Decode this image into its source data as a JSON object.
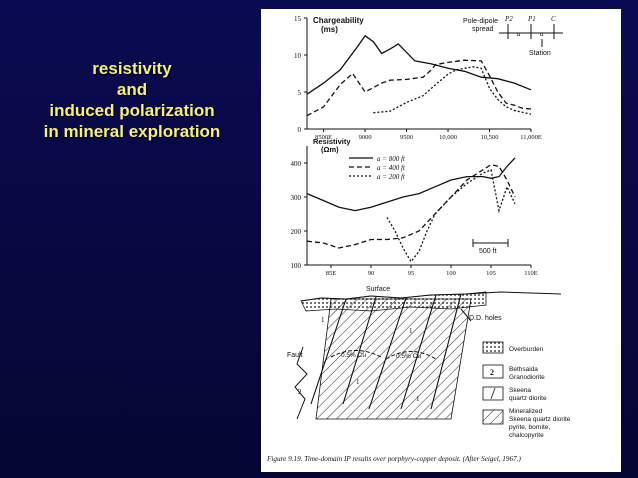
{
  "title_lines": [
    "resistivity",
    "and",
    "induced polarization",
    "in mineral exploration"
  ],
  "caption": "Figure 9.19. Time-domain IP results over porphyry-copper deposit. (After Seigel, 1967.)",
  "top_plot": {
    "ylabel_1": "Chargeability",
    "ylabel_2": "(ms)",
    "yticks": [
      "15",
      "10",
      "5",
      "0"
    ],
    "xticks": [
      "8500E",
      "9000",
      "9500",
      "10,000",
      "10,500",
      "11,000E"
    ]
  },
  "spread": {
    "label_1": "Pole-dipole",
    "label_2": "spread",
    "electrodes": [
      "P2",
      "P1",
      "C"
    ],
    "a_label": "a",
    "station_label": "Station"
  },
  "mid_plot": {
    "ylabel_1": "Resistivity",
    "ylabel_2": "(Ωm)",
    "yticks": [
      "400",
      "300",
      "200",
      "100"
    ],
    "xticks": [
      "85E",
      "90",
      "95",
      "100",
      "105",
      "110E"
    ],
    "legend": [
      "a = 800 ft",
      "a = 400 ft",
      "a = 200 ft"
    ],
    "scale_label": "500 ft"
  },
  "section": {
    "surface_label": "Surface",
    "dd_label": "D.D. holes",
    "fault_label": "Fault",
    "grade_labels": [
      "0.5% Cu",
      "0.5% Cu"
    ],
    "unit_numbers": [
      "1",
      "1",
      "1",
      "2",
      "1"
    ],
    "legend": [
      {
        "key": "",
        "lines": [
          "Overburden"
        ]
      },
      {
        "key": "2",
        "lines": [
          "Bethsaida",
          "Granodiorite"
        ]
      },
      {
        "key": "1",
        "lines": [
          "Skeena",
          "quartz diorite"
        ]
      },
      {
        "key": "",
        "lines": [
          "Mineralized",
          "Skeena quartz diorite",
          "pyrite, bornite,",
          "chalcopyrite"
        ]
      }
    ]
  },
  "chart_data": [
    {
      "type": "line",
      "title": "",
      "ylabel": "Chargeability (ms)",
      "xlabel": "",
      "ylim": [
        0,
        15
      ],
      "xlim": [
        8300,
        11000
      ],
      "series": [
        {
          "x": [
            8300,
            8500,
            8700,
            8900,
            9000,
            9100,
            9200,
            9300,
            9400,
            9600,
            9800,
            10000,
            10200,
            10400,
            10600,
            10800,
            11000
          ],
          "y": [
            4.7,
            6.2,
            8.0,
            11.0,
            12.6,
            11.8,
            10.2,
            10.8,
            11.5,
            9.2,
            8.8,
            8.2,
            7.8,
            7.0,
            6.8,
            6.2,
            5.3
          ]
        },
        {
          "x": [
            8300,
            8500,
            8700,
            8850,
            9000,
            9200,
            9300,
            9500,
            9700,
            9800,
            9850,
            10000,
            10200,
            10400,
            10500,
            10600,
            10700,
            10800,
            10900,
            11000
          ],
          "y": [
            1.8,
            3.0,
            6.0,
            7.5,
            5.0,
            6.2,
            6.6,
            6.7,
            7.0,
            8.0,
            8.7,
            9.0,
            9.3,
            9.2,
            7.2,
            5.0,
            3.5,
            3.2,
            2.8,
            2.7
          ]
        },
        {
          "x": [
            9100,
            9300,
            9400,
            9500,
            9700,
            9850,
            10000,
            10100,
            10200,
            10300,
            10400,
            10500,
            10600,
            10700,
            10800,
            11000
          ],
          "y": [
            2.2,
            2.4,
            3.0,
            3.6,
            4.5,
            6.0,
            7.4,
            8.0,
            8.2,
            8.4,
            8.2,
            5.5,
            4.0,
            3.0,
            2.5,
            2.0
          ]
        }
      ]
    },
    {
      "type": "line",
      "title": "",
      "ylabel": "Resistivity (Ωm)",
      "xlabel": "",
      "ylim": [
        100,
        450
      ],
      "xlim": [
        82,
        110
      ],
      "series": [
        {
          "name": "a = 800 ft",
          "x": [
            82,
            84,
            86,
            88,
            90,
            92,
            94,
            96,
            98,
            100,
            102,
            104,
            105,
            106,
            107,
            108
          ],
          "y": [
            310,
            290,
            270,
            260,
            270,
            285,
            300,
            310,
            330,
            350,
            360,
            360,
            355,
            360,
            390,
            415
          ]
        },
        {
          "name": "a = 400 ft",
          "x": [
            82,
            84,
            86,
            88,
            90,
            92,
            94,
            96,
            98,
            100,
            102,
            104,
            105,
            106,
            107,
            108
          ],
          "y": [
            170,
            165,
            150,
            160,
            175,
            175,
            180,
            200,
            250,
            300,
            350,
            380,
            395,
            390,
            350,
            300
          ]
        },
        {
          "name": "a = 200 ft",
          "x": [
            92,
            93,
            94,
            95,
            96,
            97,
            98,
            100,
            102,
            104,
            105,
            106,
            107,
            108
          ],
          "y": [
            240,
            200,
            150,
            110,
            140,
            200,
            250,
            300,
            340,
            370,
            380,
            260,
            330,
            280
          ]
        }
      ]
    }
  ]
}
